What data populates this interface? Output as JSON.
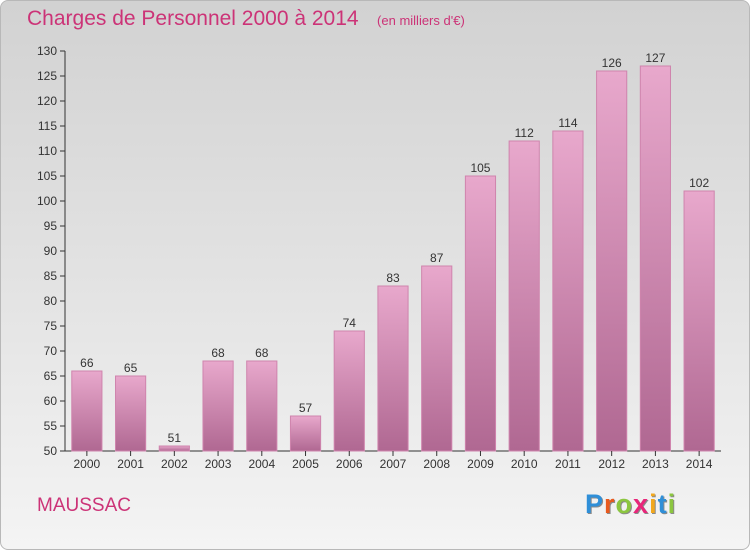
{
  "header": {
    "title": "Charges de Personnel 2000 à 2014",
    "subtitle": "(en milliers d'€)"
  },
  "commune": "MAUSSAC",
  "logo": {
    "text": "Proxiti",
    "letters": [
      {
        "char": "P",
        "color": "#2f8fd8"
      },
      {
        "char": "r",
        "color": "#e85a1e"
      },
      {
        "char": "o",
        "color": "#8cc640"
      },
      {
        "char": "x",
        "color": "#e8267a"
      },
      {
        "char": "i",
        "color": "#f2a81d"
      },
      {
        "char": "t",
        "color": "#2f8fd8"
      },
      {
        "char": "i",
        "color": "#8cc640"
      }
    ]
  },
  "chart_data": {
    "type": "bar",
    "title": "Charges de Personnel 2000 à 2014",
    "subtitle": "(en milliers d'€)",
    "categories": [
      "2000",
      "2001",
      "2002",
      "2003",
      "2004",
      "2005",
      "2006",
      "2007",
      "2008",
      "2009",
      "2010",
      "2011",
      "2012",
      "2013",
      "2014"
    ],
    "values": [
      66,
      65,
      51,
      68,
      68,
      57,
      74,
      83,
      87,
      105,
      112,
      114,
      126,
      127,
      102
    ],
    "data_labels": [
      "66",
      "65",
      "51",
      "68",
      "68",
      "57",
      "74",
      "83",
      "87",
      "105",
      "112",
      "114",
      "126",
      "127",
      "102"
    ],
    "ylim": [
      50,
      130
    ],
    "yticks": [
      50,
      55,
      60,
      65,
      70,
      75,
      80,
      85,
      90,
      95,
      100,
      105,
      110,
      115,
      120,
      125,
      130
    ],
    "xlabel": "",
    "ylabel": "",
    "grid": false,
    "legend": "none",
    "colors": {
      "bar_top": "#e8a8cc",
      "bar_bottom": "#b06892",
      "bar_edge": "#cf84ad",
      "axis": "#333333",
      "text": "#333333"
    }
  }
}
